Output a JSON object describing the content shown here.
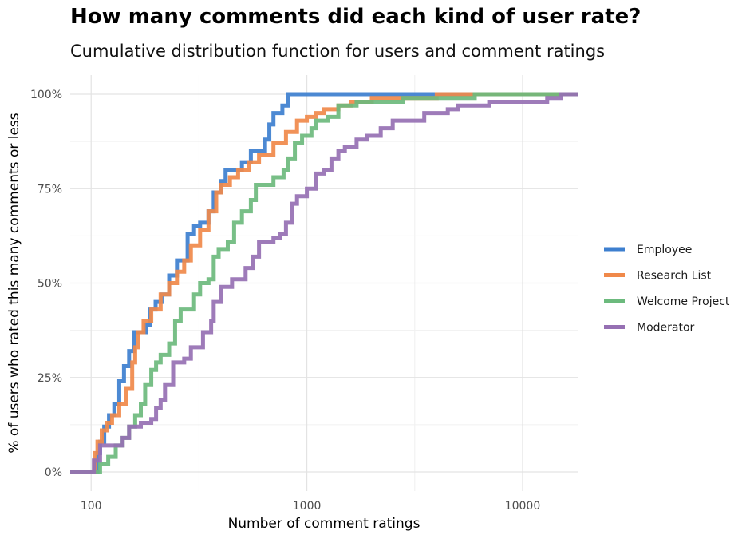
{
  "title": "How many comments did each kind of user rate?",
  "subtitle": "Cumulative distribution function for users and comment ratings",
  "chart_data": {
    "type": "line",
    "step": true,
    "xlabel": "Number of comment ratings",
    "ylabel": "% of users who rated this many comments or less",
    "x_scale": "log10",
    "xlim": [
      80,
      18000
    ],
    "ylim": [
      0,
      1
    ],
    "x_ticks": [
      100,
      1000,
      10000
    ],
    "x_tick_labels": [
      "100",
      "1000",
      "10000"
    ],
    "y_ticks": [
      0,
      0.25,
      0.5,
      0.75,
      1
    ],
    "y_tick_labels": [
      "0%",
      "25%",
      "50%",
      "75%",
      "100%"
    ],
    "grid": true,
    "legend_position": "right",
    "series": [
      {
        "name": "Employee",
        "color": "#3d7fcf",
        "points": [
          [
            80,
            0
          ],
          [
            100,
            0
          ],
          [
            105,
            0
          ],
          [
            107,
            0.05
          ],
          [
            110,
            0.08
          ],
          [
            115,
            0.12
          ],
          [
            121,
            0.15
          ],
          [
            128,
            0.18
          ],
          [
            135,
            0.24
          ],
          [
            142,
            0.28
          ],
          [
            150,
            0.32
          ],
          [
            158,
            0.37
          ],
          [
            170,
            0.37
          ],
          [
            180,
            0.39
          ],
          [
            188,
            0.43
          ],
          [
            199,
            0.45
          ],
          [
            212,
            0.47
          ],
          [
            226,
            0.47
          ],
          [
            230,
            0.52
          ],
          [
            250,
            0.56
          ],
          [
            270,
            0.56
          ],
          [
            280,
            0.63
          ],
          [
            300,
            0.65
          ],
          [
            320,
            0.66
          ],
          [
            350,
            0.69
          ],
          [
            370,
            0.74
          ],
          [
            400,
            0.77
          ],
          [
            420,
            0.8
          ],
          [
            460,
            0.8
          ],
          [
            500,
            0.82
          ],
          [
            550,
            0.85
          ],
          [
            600,
            0.85
          ],
          [
            640,
            0.88
          ],
          [
            670,
            0.92
          ],
          [
            700,
            0.95
          ],
          [
            770,
            0.97
          ],
          [
            820,
            1.0
          ],
          [
            18000,
            1.0
          ]
        ]
      },
      {
        "name": "Research List",
        "color": "#f0894a",
        "points": [
          [
            80,
            0
          ],
          [
            100,
            0
          ],
          [
            104,
            0.05
          ],
          [
            107,
            0.08
          ],
          [
            112,
            0.11
          ],
          [
            118,
            0.13
          ],
          [
            125,
            0.15
          ],
          [
            135,
            0.18
          ],
          [
            145,
            0.22
          ],
          [
            155,
            0.29
          ],
          [
            160,
            0.33
          ],
          [
            165,
            0.37
          ],
          [
            175,
            0.4
          ],
          [
            190,
            0.43
          ],
          [
            210,
            0.47
          ],
          [
            230,
            0.5
          ],
          [
            250,
            0.53
          ],
          [
            270,
            0.56
          ],
          [
            290,
            0.6
          ],
          [
            320,
            0.64
          ],
          [
            350,
            0.69
          ],
          [
            380,
            0.74
          ],
          [
            400,
            0.76
          ],
          [
            440,
            0.78
          ],
          [
            480,
            0.8
          ],
          [
            540,
            0.82
          ],
          [
            600,
            0.84
          ],
          [
            700,
            0.87
          ],
          [
            800,
            0.9
          ],
          [
            900,
            0.93
          ],
          [
            1000,
            0.94
          ],
          [
            1100,
            0.95
          ],
          [
            1200,
            0.96
          ],
          [
            1400,
            0.97
          ],
          [
            1600,
            0.98
          ],
          [
            2000,
            0.99
          ],
          [
            2500,
            0.99
          ],
          [
            3000,
            0.99
          ],
          [
            4000,
            1.0
          ],
          [
            18000,
            1.0
          ]
        ]
      },
      {
        "name": "Welcome Project",
        "color": "#6cba7d",
        "points": [
          [
            80,
            0
          ],
          [
            100,
            0
          ],
          [
            105,
            0
          ],
          [
            110,
            0.02
          ],
          [
            120,
            0.04
          ],
          [
            130,
            0.07
          ],
          [
            140,
            0.09
          ],
          [
            150,
            0.12
          ],
          [
            160,
            0.15
          ],
          [
            170,
            0.18
          ],
          [
            178,
            0.23
          ],
          [
            190,
            0.27
          ],
          [
            200,
            0.29
          ],
          [
            210,
            0.31
          ],
          [
            230,
            0.34
          ],
          [
            245,
            0.4
          ],
          [
            260,
            0.43
          ],
          [
            290,
            0.43
          ],
          [
            300,
            0.47
          ],
          [
            320,
            0.5
          ],
          [
            350,
            0.51
          ],
          [
            370,
            0.57
          ],
          [
            390,
            0.59
          ],
          [
            430,
            0.61
          ],
          [
            460,
            0.66
          ],
          [
            500,
            0.69
          ],
          [
            550,
            0.72
          ],
          [
            580,
            0.76
          ],
          [
            650,
            0.76
          ],
          [
            700,
            0.78
          ],
          [
            780,
            0.8
          ],
          [
            820,
            0.83
          ],
          [
            880,
            0.87
          ],
          [
            950,
            0.89
          ],
          [
            1050,
            0.91
          ],
          [
            1100,
            0.93
          ],
          [
            1250,
            0.94
          ],
          [
            1400,
            0.97
          ],
          [
            1700,
            0.98
          ],
          [
            2200,
            0.98
          ],
          [
            2800,
            0.99
          ],
          [
            4000,
            0.99
          ],
          [
            6000,
            1.0
          ],
          [
            18000,
            1.0
          ]
        ]
      },
      {
        "name": "Moderator",
        "color": "#9670b3",
        "points": [
          [
            80,
            0
          ],
          [
            100,
            0
          ],
          [
            103,
            0.03
          ],
          [
            110,
            0.07
          ],
          [
            120,
            0.07
          ],
          [
            140,
            0.09
          ],
          [
            150,
            0.12
          ],
          [
            170,
            0.13
          ],
          [
            190,
            0.14
          ],
          [
            200,
            0.17
          ],
          [
            210,
            0.19
          ],
          [
            220,
            0.23
          ],
          [
            240,
            0.29
          ],
          [
            270,
            0.3
          ],
          [
            290,
            0.33
          ],
          [
            330,
            0.37
          ],
          [
            360,
            0.4
          ],
          [
            370,
            0.45
          ],
          [
            400,
            0.49
          ],
          [
            450,
            0.51
          ],
          [
            520,
            0.54
          ],
          [
            560,
            0.57
          ],
          [
            600,
            0.61
          ],
          [
            700,
            0.62
          ],
          [
            750,
            0.63
          ],
          [
            800,
            0.66
          ],
          [
            850,
            0.71
          ],
          [
            900,
            0.73
          ],
          [
            1000,
            0.75
          ],
          [
            1100,
            0.79
          ],
          [
            1200,
            0.8
          ],
          [
            1300,
            0.83
          ],
          [
            1400,
            0.85
          ],
          [
            1500,
            0.86
          ],
          [
            1700,
            0.88
          ],
          [
            1900,
            0.89
          ],
          [
            2200,
            0.91
          ],
          [
            2500,
            0.93
          ],
          [
            3000,
            0.93
          ],
          [
            3500,
            0.95
          ],
          [
            4500,
            0.96
          ],
          [
            5000,
            0.97
          ],
          [
            7000,
            0.98
          ],
          [
            10000,
            0.98
          ],
          [
            13000,
            0.99
          ],
          [
            15000,
            1.0
          ],
          [
            18000,
            1.0
          ]
        ]
      }
    ]
  }
}
